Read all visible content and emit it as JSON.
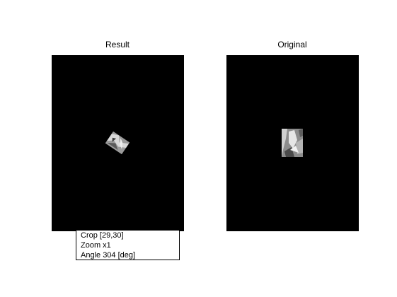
{
  "figure": {
    "result_panel": {
      "title": "Result"
    },
    "original_panel": {
      "title": "Original"
    },
    "info": {
      "crop_text": "Crop [29,30]",
      "zoom_text": "Zoom x1",
      "angle_text": "Angle 304 [deg]"
    }
  },
  "colors": {
    "axes_background": "#000000",
    "figure_background": "#ffffff"
  }
}
